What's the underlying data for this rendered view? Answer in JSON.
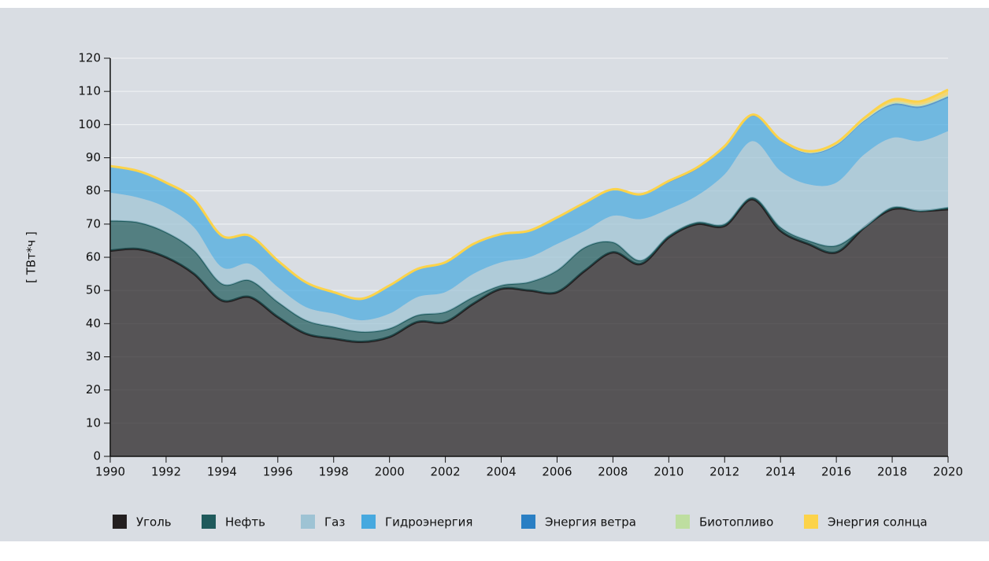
{
  "chart_data": {
    "type": "stacked_area",
    "y_label": "[ ТВт*ч ]",
    "x": [
      1990,
      1991,
      1992,
      1993,
      1994,
      1995,
      1996,
      1997,
      1998,
      1999,
      2000,
      2001,
      2002,
      2003,
      2004,
      2005,
      2006,
      2007,
      2008,
      2009,
      2010,
      2011,
      2012,
      2013,
      2014,
      2015,
      2016,
      2017,
      2018,
      2019,
      2020
    ],
    "xlim": [
      1990,
      2020
    ],
    "xticks": [
      1990,
      1992,
      1994,
      1996,
      1998,
      2000,
      2002,
      2004,
      2006,
      2008,
      2010,
      2012,
      2014,
      2016,
      2018,
      2020
    ],
    "ylim": [
      0,
      120
    ],
    "yticks": [
      0,
      10,
      20,
      30,
      40,
      50,
      60,
      70,
      80,
      90,
      100,
      110,
      120
    ],
    "grid": true,
    "legend": "bottom",
    "series": [
      {
        "name": "Уголь",
        "color": "#231f20",
        "values": [
          62,
          62.5,
          60,
          55,
          47,
          48,
          42,
          37,
          35.5,
          34.5,
          36,
          40.5,
          40.5,
          46,
          50.5,
          50,
          49.5,
          56,
          61.5,
          58,
          66,
          70,
          69.5,
          77.5,
          68,
          64,
          61.5,
          69,
          74.5,
          74,
          74.5
        ]
      },
      {
        "name": "Нефть",
        "color": "#1f5a5c",
        "values": [
          9,
          8,
          7.5,
          7,
          5,
          5,
          4.5,
          4,
          3.5,
          3,
          2.5,
          2,
          3,
          2,
          1,
          2.5,
          6.5,
          7,
          3,
          1,
          0.5,
          0.5,
          0.5,
          0.5,
          1,
          1,
          2,
          0,
          0.5,
          0,
          0.5
        ]
      },
      {
        "name": "Газ",
        "color": "#9ec3d4",
        "values": [
          8.5,
          7.5,
          7.5,
          7,
          5,
          5,
          4.5,
          4,
          4,
          3.5,
          4.5,
          5.5,
          6,
          7,
          7,
          7.5,
          8,
          5,
          8,
          12.5,
          8,
          8,
          15,
          17,
          17,
          17,
          19,
          22,
          21,
          21,
          23
        ]
      },
      {
        "name": "Гидроэнергия",
        "color": "#47a9df",
        "values": [
          7.7,
          7.7,
          7.2,
          8.2,
          9.2,
          8.2,
          7.7,
          7.2,
          6.2,
          6.2,
          8.2,
          8.2,
          8.7,
          8.7,
          8.2,
          7.7,
          7.7,
          8.2,
          7.7,
          7.2,
          8,
          8,
          8,
          7.5,
          9,
          9.2,
          11.1,
          9.9,
          9.7,
          10,
          10
        ]
      },
      {
        "name": "Энергия ветра",
        "color": "#2a7fc4",
        "values": [
          0,
          0,
          0,
          0,
          0,
          0,
          0,
          0,
          0,
          0,
          0,
          0,
          0,
          0,
          0,
          0,
          0,
          0,
          0,
          0,
          0.2,
          0.2,
          0.2,
          0.2,
          0.2,
          0.2,
          0.3,
          0.3,
          0.5,
          0.5,
          0.5
        ]
      },
      {
        "name": "Биотопливо",
        "color": "#bedea0",
        "values": [
          0.3,
          0.3,
          0.3,
          0.3,
          0.3,
          0.3,
          0.3,
          0.3,
          0.3,
          0.3,
          0.3,
          0.3,
          0.3,
          0.3,
          0.3,
          0.3,
          0.3,
          0.3,
          0.3,
          0.3,
          0.3,
          0.3,
          0.3,
          0.3,
          0.3,
          0.3,
          0.3,
          0.3,
          0.5,
          0.5,
          0.5
        ]
      },
      {
        "name": "Энергия солнца",
        "color": "#fcd34a",
        "values": [
          0,
          0,
          0,
          0,
          0,
          0,
          0,
          0,
          0,
          0,
          0,
          0,
          0,
          0,
          0,
          0,
          0,
          0,
          0,
          0,
          0,
          0,
          0,
          0,
          0,
          0.3,
          0.3,
          0.5,
          0.8,
          1,
          1.5
        ]
      }
    ]
  }
}
